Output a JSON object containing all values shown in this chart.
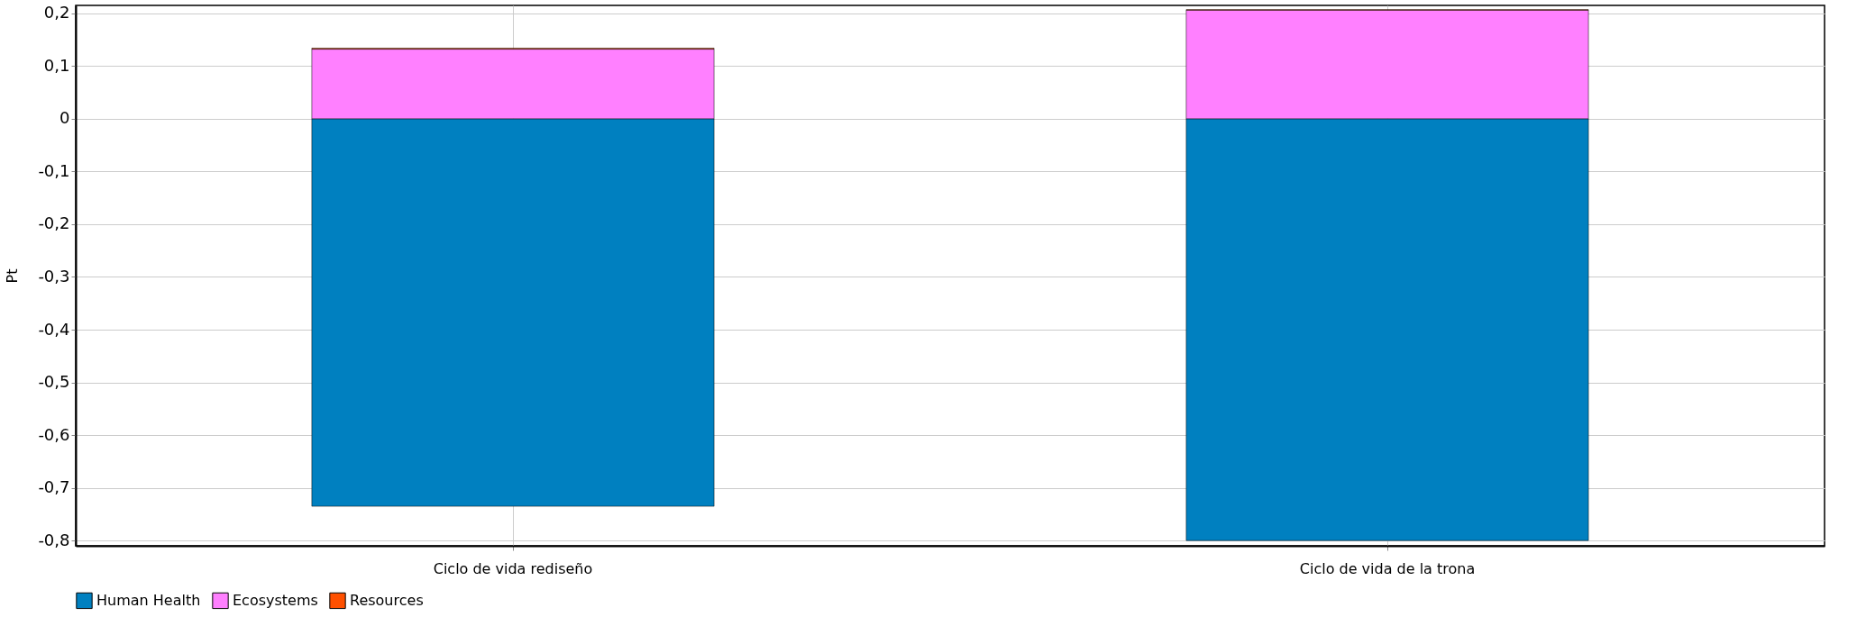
{
  "chart_data": {
    "type": "bar",
    "stacked": true,
    "ylabel": "Pt",
    "categories": [
      "Ciclo de vida rediseño",
      "Ciclo de vida de la trona"
    ],
    "series": [
      {
        "name": "Human Health",
        "color": "#0080c0",
        "values": [
          -0.735,
          -0.8
        ]
      },
      {
        "name": "Ecosystems",
        "color": "#ff80ff",
        "values": [
          0.132,
          0.206
        ]
      },
      {
        "name": "Resources",
        "color": "#ff5000",
        "values": [
          0.002,
          0.001
        ]
      }
    ],
    "ylim": [
      -0.81,
      0.215
    ],
    "yticks": [
      {
        "value": -0.8,
        "label": "-0,8"
      },
      {
        "value": -0.7,
        "label": "-0,7"
      },
      {
        "value": -0.6,
        "label": "-0,6"
      },
      {
        "value": -0.5,
        "label": "-0,5"
      },
      {
        "value": -0.4,
        "label": "-0,4"
      },
      {
        "value": -0.3,
        "label": "-0,3"
      },
      {
        "value": -0.2,
        "label": "-0,2"
      },
      {
        "value": -0.1,
        "label": "-0,1"
      },
      {
        "value": 0,
        "label": "0"
      },
      {
        "value": 0.1,
        "label": "0,1"
      },
      {
        "value": 0.2,
        "label": "0,2"
      }
    ],
    "grid": true,
    "legend": "bottom"
  }
}
